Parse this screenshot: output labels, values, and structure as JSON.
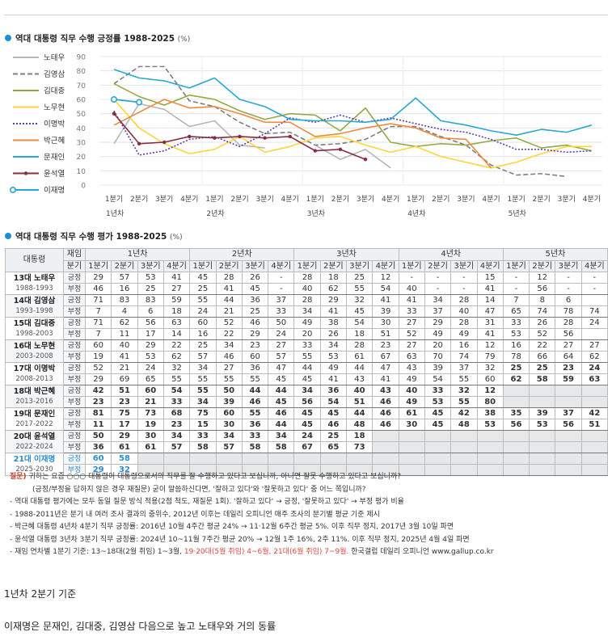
{
  "section1": {
    "title": "역대 대통령 직무 수행 긍정률 1988-2025",
    "unit": "(%)"
  },
  "section2": {
    "title": "역대 대통령 직무 수행 평가 1988-2025",
    "unit": "(%)"
  },
  "chart_data": {
    "type": "line",
    "title": "역대 대통령 직무 수행 긍정률 1988-2025 (%)",
    "ylim": [
      0,
      90
    ],
    "yticks": [
      "90",
      "80",
      "70",
      "60",
      "50",
      "40",
      "30",
      "20",
      "10",
      "0"
    ],
    "categories": [
      "1분기",
      "2분기",
      "3분기",
      "4분기",
      "1분기",
      "2분기",
      "3분기",
      "4분기",
      "1분기",
      "2분기",
      "3분기",
      "4분기",
      "1분기",
      "2분기",
      "3분기",
      "4분기",
      "1분기",
      "2분기",
      "3분기",
      "4분기"
    ],
    "year_labels": [
      "1년차",
      "2년차",
      "3년차",
      "4년차",
      "5년차"
    ],
    "series": [
      {
        "name": "노태우",
        "color": "#b7b7b7",
        "dash": "",
        "marker": "",
        "values": [
          29,
          57,
          53,
          41,
          45,
          28,
          26,
          null,
          28,
          18,
          25,
          12,
          null,
          null,
          null,
          15,
          null,
          12,
          null,
          null
        ]
      },
      {
        "name": "김영삼",
        "color": "#7f7f7f",
        "dash": "6,3",
        "marker": "",
        "values": [
          71,
          83,
          83,
          59,
          55,
          44,
          36,
          37,
          28,
          29,
          32,
          41,
          41,
          34,
          28,
          14,
          7,
          8,
          6,
          null
        ]
      },
      {
        "name": "김대중",
        "color": "#93aa44",
        "dash": "",
        "marker": "",
        "values": [
          71,
          62,
          56,
          63,
          60,
          52,
          46,
          50,
          49,
          38,
          54,
          30,
          27,
          29,
          28,
          31,
          33,
          26,
          28,
          24
        ]
      },
      {
        "name": "노무현",
        "color": "#ffd53a",
        "dash": "",
        "marker": "",
        "values": [
          60,
          40,
          29,
          22,
          25,
          34,
          23,
          27,
          33,
          34,
          28,
          23,
          27,
          20,
          16,
          12,
          16,
          22,
          27,
          27
        ]
      },
      {
        "name": "이명박",
        "color": "#5b3fa8",
        "dash": "2,2",
        "marker": "",
        "values": [
          52,
          21,
          24,
          32,
          34,
          27,
          36,
          47,
          44,
          49,
          44,
          47,
          43,
          39,
          37,
          32,
          25,
          25,
          23,
          24
        ]
      },
      {
        "name": "박근혜",
        "color": "#ee8a3c",
        "dash": "",
        "marker": "",
        "values": [
          42,
          51,
          60,
          54,
          55,
          50,
          44,
          44,
          34,
          36,
          40,
          43,
          40,
          33,
          32,
          12,
          null,
          null,
          null,
          null
        ]
      },
      {
        "name": "문재인",
        "color": "#29a7d5",
        "dash": "",
        "marker": "",
        "values": [
          81,
          75,
          73,
          68,
          75,
          60,
          55,
          46,
          45,
          45,
          44,
          46,
          61,
          45,
          42,
          38,
          35,
          39,
          37,
          42
        ]
      },
      {
        "name": "윤석열",
        "color": "#8a2c3e",
        "dash": "",
        "marker": "dot",
        "values": [
          50,
          29,
          30,
          34,
          33,
          34,
          33,
          34,
          24,
          25,
          18,
          null,
          null,
          null,
          null,
          null,
          null,
          null,
          null,
          null
        ]
      },
      {
        "name": "이재명",
        "color": "#29a7d5",
        "dash": "",
        "marker": "circle",
        "values": [
          60,
          58,
          null,
          null,
          null,
          null,
          null,
          null,
          null,
          null,
          null,
          null,
          null,
          null,
          null,
          null,
          null,
          null,
          null,
          null
        ]
      }
    ]
  },
  "table": {
    "header_name": "대통령",
    "header_term": "재임",
    "header_kind": "분기",
    "years": [
      "1년차",
      "2년차",
      "3년차",
      "4년차",
      "5년차"
    ],
    "quarters": [
      "1분기",
      "2분기",
      "3분기",
      "4분기",
      "1분기",
      "2분기",
      "3분기",
      "4분기",
      "1분기",
      "2분기",
      "3분기",
      "4분기",
      "1분기",
      "2분기",
      "3분기",
      "4분기",
      "1분기",
      "2분기",
      "3분기",
      "4분기"
    ],
    "pos_label": "긍정",
    "neg_label": "부정",
    "presidents": [
      {
        "name": "13대 노태우",
        "term": "1988-1993",
        "pos": [
          "29",
          "57",
          "53",
          "41",
          "45",
          "28",
          "26",
          "-",
          "28",
          "18",
          "25",
          "12",
          "-",
          "-",
          "-",
          "15",
          "-",
          "12",
          "-",
          "-"
        ],
        "neg": [
          "46",
          "16",
          "25",
          "27",
          "25",
          "41",
          "45",
          "-",
          "40",
          "62",
          "55",
          "54",
          "40",
          "-",
          "-",
          "41",
          "-",
          "56",
          "-",
          "-"
        ]
      },
      {
        "name": "14대 김영삼",
        "term": "1993-1998",
        "pos": [
          "71",
          "83",
          "83",
          "59",
          "55",
          "44",
          "36",
          "37",
          "28",
          "29",
          "32",
          "41",
          "41",
          "34",
          "28",
          "14",
          "7",
          "8",
          "6",
          ""
        ],
        "neg": [
          "7",
          "4",
          "6",
          "18",
          "24",
          "21",
          "25",
          "33",
          "34",
          "41",
          "45",
          "39",
          "33",
          "37",
          "40",
          "47",
          "65",
          "74",
          "78",
          "74"
        ]
      },
      {
        "name": "15대 김대중",
        "term": "1998-2003",
        "pos": [
          "71",
          "62",
          "56",
          "63",
          "60",
          "52",
          "46",
          "50",
          "49",
          "38",
          "54",
          "30",
          "27",
          "29",
          "28",
          "31",
          "33",
          "26",
          "28",
          "24"
        ],
        "neg": [
          "7",
          "11",
          "17",
          "14",
          "16",
          "22",
          "29",
          "24",
          "20",
          "26",
          "18",
          "51",
          "52",
          "49",
          "49",
          "41",
          "53",
          "52",
          "56",
          ""
        ]
      },
      {
        "name": "16대 노무현",
        "term": "2003-2008",
        "pos": [
          "60",
          "40",
          "29",
          "22",
          "25",
          "34",
          "23",
          "27",
          "33",
          "34",
          "28",
          "23",
          "27",
          "20",
          "16",
          "12",
          "16",
          "22",
          "27",
          "27"
        ],
        "neg": [
          "19",
          "41",
          "53",
          "62",
          "57",
          "46",
          "60",
          "57",
          "55",
          "53",
          "61",
          "67",
          "63",
          "70",
          "74",
          "79",
          "78",
          "66",
          "64",
          "62"
        ]
      },
      {
        "name": "17대 이명박",
        "term": "2008-2013",
        "pos": [
          "52",
          "21",
          "24",
          "32",
          "34",
          "27",
          "36",
          "47",
          "44",
          "49",
          "44",
          "47",
          "43",
          "39",
          "37",
          "32",
          "25",
          "25",
          "23",
          "24"
        ],
        "neg": [
          "29",
          "69",
          "65",
          "55",
          "55",
          "55",
          "55",
          "45",
          "45",
          "41",
          "43",
          "41",
          "49",
          "54",
          "55",
          "60",
          "62",
          "58",
          "59",
          "63"
        ]
      },
      {
        "name": "18대 박근혜",
        "term": "2013-2016",
        "pos": [
          "42",
          "51",
          "60",
          "54",
          "55",
          "50",
          "44",
          "44",
          "34",
          "36",
          "40",
          "43",
          "40",
          "33",
          "32",
          "12",
          "",
          "",
          "",
          ""
        ],
        "neg": [
          "23",
          "23",
          "21",
          "33",
          "34",
          "39",
          "46",
          "45",
          "56",
          "54",
          "51",
          "46",
          "49",
          "53",
          "55",
          "80",
          "",
          "",
          "",
          ""
        ]
      },
      {
        "name": "19대 문재인",
        "term": "2017-2022",
        "pos": [
          "81",
          "75",
          "73",
          "68",
          "75",
          "60",
          "55",
          "46",
          "45",
          "45",
          "44",
          "46",
          "61",
          "45",
          "42",
          "38",
          "35",
          "39",
          "37",
          "42"
        ],
        "neg": [
          "11",
          "17",
          "19",
          "23",
          "15",
          "30",
          "36",
          "44",
          "45",
          "46",
          "48",
          "46",
          "30",
          "45",
          "48",
          "53",
          "56",
          "53",
          "56",
          "51"
        ]
      },
      {
        "name": "20대 윤석열",
        "term": "2022-2024",
        "pos": [
          "50",
          "29",
          "30",
          "34",
          "33",
          "34",
          "33",
          "34",
          "24",
          "25",
          "18",
          "",
          "",
          "",
          "",
          "",
          "",
          "",
          "",
          ""
        ],
        "neg": [
          "36",
          "61",
          "61",
          "57",
          "58",
          "57",
          "58",
          "58",
          "67",
          "65",
          "73",
          "",
          "",
          "",
          "",
          "",
          "",
          "",
          "",
          ""
        ]
      },
      {
        "name": "21대 이재명",
        "term": "2025-2030",
        "pos": [
          "60",
          "58",
          "",
          "",
          "",
          "",
          "",
          "",
          "",
          "",
          "",
          "",
          "",
          "",
          "",
          "",
          "",
          "",
          "",
          ""
        ],
        "neg": [
          "29",
          "32",
          "",
          "",
          "",
          "",
          "",
          "",
          "",
          "",
          "",
          "",
          "",
          "",
          "",
          "",
          "",
          "",
          "",
          ""
        ]
      }
    ]
  },
  "notes": {
    "q_label": "질문)",
    "q_line1": "귀하는 요즘 ○○○ 대통령이 대통령으로서의 직무를 잘 수행하고 있다고 보십니까, 아니면 잘못 수행하고 있다고 보십니까?",
    "q_line2": "(긍정/부정을 답하지 않은 경우 재질문) 굳이 말씀하신다면, '잘하고 있다'와 '잘못하고 있다' 중 어느 쪽입니까?",
    "n1": "- 역대 대통령 평가에는 모두 동일 질문 방식 적용(2점 척도, 재질문 1회). '잘하고 있다' → 긍정, '잘못하고 있다' → 부정 평가 비율",
    "n2": "- 1988-2011년은 분기 내 여러 조사 결과의 중위수, 2012년 이후는 데일리 오피니언 매주 조사의 분기별 평균 기준 제시",
    "n3": "- 박근혜 대통령 4년차 4분기 직무 긍정률: 2016년 10월 4주간 평균 24% → 11·12월 6주간 평균 5%. 이후 직무 정지, 2017년 3월 10일 파면",
    "n4": "- 윤석열 대통령 3년차 3분기 직무 긍정률: 2024년 10~11월 7주간 평균 20% → 12월 1주 16%, 2주 11%. 이후 직무 정지, 2025년 4월 4일 파면",
    "n5_a": "- 재임 연차별 1분기 기준: 13~18대(2월 취임) 1~3월, ",
    "n5_b": "19·20대(5월 취임) 4~6월, 21대(6월 취임) 7~9월.",
    "n5_c": " 한국갤럽 데일리 오피니언 www.gallup.co.kr"
  },
  "caption1": "1년차 2분기 기준",
  "caption2": "이재명은 문재인, 김대중, 김영삼 다음으로 높고 노태우와 거의 동률"
}
